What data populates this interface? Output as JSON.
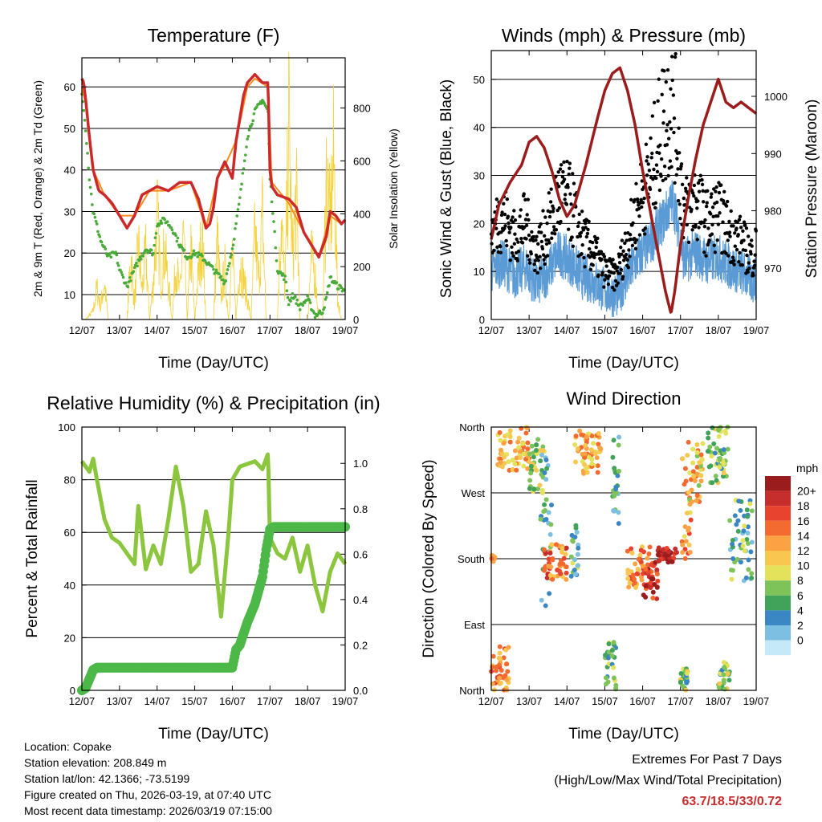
{
  "chart_data": [
    {
      "type": "line",
      "title": "Temperature (F)",
      "xlabel": "Time (Day/UTC)",
      "ylabel": "2m & 9m T (Red, Orange) & 2m Td (Green)",
      "y2label": "Solar Insolation (Yellow)",
      "categories": [
        "12/07",
        "13/07",
        "14/07",
        "15/07",
        "16/07",
        "17/07",
        "18/07",
        "19/07"
      ],
      "ylim": [
        4,
        67
      ],
      "yticks": [
        10,
        20,
        30,
        40,
        50,
        60
      ],
      "y2lim": [
        0,
        990
      ],
      "y2ticks": [
        0,
        200,
        400,
        600,
        800
      ],
      "series": [
        {
          "name": "2m T",
          "color": "#cc2a2a",
          "x": [
            0,
            0.05,
            0.1,
            0.2,
            0.3,
            0.45,
            0.6,
            0.8,
            1.0,
            1.2,
            1.4,
            1.6,
            1.8,
            2.0,
            2.3,
            2.6,
            2.9,
            3.1,
            3.3,
            3.4,
            3.5,
            3.6,
            3.8,
            4.0,
            4.1,
            4.3,
            4.4,
            4.6,
            4.8,
            4.95,
            5.0,
            5.05,
            5.2,
            5.5,
            5.7,
            5.9,
            6.1,
            6.3,
            6.5,
            6.6,
            6.75,
            6.9,
            7.0
          ],
          "values": [
            62,
            61,
            57,
            48,
            40,
            35,
            34,
            32,
            29,
            26,
            29,
            34,
            35,
            36,
            35,
            37,
            37,
            33,
            26,
            27,
            31,
            38,
            42,
            38,
            47,
            58,
            61,
            63,
            61,
            61,
            40,
            36,
            34,
            33,
            31,
            25,
            22,
            19,
            24,
            30,
            29,
            27,
            28
          ]
        },
        {
          "name": "9m T",
          "color": "#ff8c1a",
          "x": [
            0,
            0.1,
            0.3,
            0.6,
            1.0,
            1.4,
            1.8,
            2.3,
            2.9,
            3.3,
            3.6,
            3.8,
            4.1,
            4.4,
            4.6,
            4.95,
            5.05,
            5.5,
            5.9,
            6.3,
            6.6,
            6.9,
            7.0
          ],
          "values": [
            60,
            56,
            40,
            34,
            29,
            29,
            35,
            35,
            37,
            26,
            38,
            41,
            47,
            60,
            62,
            60,
            37,
            32,
            25,
            19,
            29,
            27,
            28
          ]
        },
        {
          "name": "2m Td",
          "color": "#4aaa3a",
          "x": [
            0,
            0.05,
            0.1,
            0.2,
            0.3,
            0.5,
            0.7,
            0.9,
            1.0,
            1.2,
            1.3,
            1.5,
            1.7,
            1.9,
            2.0,
            2.2,
            2.4,
            2.6,
            2.8,
            3.0,
            3.2,
            3.4,
            3.6,
            3.8,
            4.0,
            4.2,
            4.4,
            4.6,
            4.8,
            4.95,
            5.0,
            5.05,
            5.2,
            5.4,
            5.5,
            5.6,
            5.8,
            6.0,
            6.2,
            6.4,
            6.5,
            6.6,
            6.8,
            7.0
          ],
          "values": [
            58,
            55,
            50,
            38,
            30,
            23,
            19,
            20,
            16,
            12,
            14,
            18,
            21,
            20,
            27,
            28,
            26,
            22,
            19,
            20,
            19,
            17,
            15,
            13,
            21,
            33,
            48,
            54,
            57,
            54,
            38,
            33,
            16,
            14,
            8,
            10,
            7,
            9,
            5,
            6,
            9,
            14,
            12,
            11
          ]
        },
        {
          "name": "Solar Insolation",
          "axis": "y2",
          "color": "#f3d23c",
          "x": [
            0.1,
            0.3,
            0.4,
            0.5,
            0.6,
            0.7,
            1.2,
            1.3,
            1.4,
            1.5,
            1.6,
            1.7,
            1.8,
            1.9,
            2.0,
            2.1,
            2.2,
            2.4,
            2.5,
            2.6,
            2.7,
            2.8,
            2.9,
            3.0,
            3.1,
            3.2,
            3.3,
            3.5,
            3.6,
            3.7,
            3.8,
            3.9,
            4.0,
            4.1,
            4.2,
            4.5,
            4.6,
            4.7,
            4.8,
            4.9,
            5.0,
            5.2,
            5.3,
            5.4,
            5.5,
            5.6,
            5.7,
            5.8,
            5.9,
            6.0,
            6.1,
            6.2,
            6.3,
            6.4,
            6.5,
            6.6,
            6.7,
            6.8,
            6.9
          ],
          "values": [
            0,
            40,
            150,
            60,
            180,
            0,
            0,
            310,
            80,
            370,
            140,
            320,
            0,
            180,
            500,
            200,
            340,
            0,
            290,
            120,
            410,
            0,
            350,
            0,
            230,
            420,
            0,
            0,
            380,
            100,
            250,
            0,
            320,
            0,
            290,
            0,
            420,
            180,
            500,
            0,
            0,
            0,
            520,
            120,
            940,
            300,
            610,
            0,
            0,
            0,
            300,
            220,
            0,
            0,
            700,
            470,
            780,
            100,
            0
          ]
        }
      ]
    },
    {
      "type": "line",
      "title": "Winds (mph) & Pressure (mb)",
      "xlabel": "Time (Day/UTC)",
      "ylabel": "Sonic Wind & Gust (Blue, Black)",
      "y2label": "Station Pressure (Maroon)",
      "categories": [
        "12/07",
        "13/07",
        "14/07",
        "15/07",
        "16/07",
        "17/07",
        "18/07",
        "19/07"
      ],
      "ylim": [
        0,
        56
      ],
      "yticks": [
        0,
        10,
        20,
        30,
        40,
        50
      ],
      "y2lim": [
        961,
        1008
      ],
      "y2ticks": [
        970,
        980,
        990,
        1000
      ],
      "series": [
        {
          "name": "Sonic Wind",
          "color": "#5b9bd5",
          "x": [
            0,
            0.3,
            0.6,
            0.9,
            1.2,
            1.5,
            1.8,
            2.1,
            2.4,
            2.7,
            3.0,
            3.3,
            3.6,
            3.9,
            4.2,
            4.5,
            4.8,
            5.1,
            5.4,
            5.7,
            6.0,
            6.3,
            6.6,
            6.9,
            7.0
          ],
          "values": [
            10,
            12,
            9,
            11,
            7,
            10,
            14,
            12,
            9,
            8,
            6,
            5,
            9,
            13,
            16,
            20,
            25,
            12,
            14,
            12,
            13,
            11,
            10,
            8,
            9
          ]
        },
        {
          "name": "Gust",
          "color": "#000000",
          "x": [
            0,
            0.3,
            0.6,
            0.9,
            1.2,
            1.5,
            1.8,
            2.1,
            2.4,
            2.7,
            3.0,
            3.3,
            3.6,
            3.9,
            4.2,
            4.5,
            4.8,
            5.1,
            5.4,
            5.7,
            6.0,
            6.3,
            6.6,
            6.9,
            7.0
          ],
          "values": [
            18,
            22,
            17,
            20,
            14,
            19,
            26,
            24,
            17,
            14,
            10,
            9,
            16,
            24,
            30,
            40,
            47,
            22,
            25,
            20,
            22,
            18,
            16,
            13,
            15
          ]
        },
        {
          "name": "Station Pressure",
          "axis": "y2",
          "color": "#9b1c1c",
          "x": [
            0,
            0.2,
            0.5,
            0.8,
            1.0,
            1.2,
            1.4,
            1.6,
            1.8,
            2.0,
            2.2,
            2.5,
            2.8,
            3.0,
            3.2,
            3.4,
            3.6,
            3.8,
            4.0,
            4.2,
            4.4,
            4.6,
            4.75,
            4.85,
            5.0,
            5.2,
            5.4,
            5.6,
            5.8,
            6.0,
            6.2,
            6.4,
            6.6,
            6.8,
            7.0
          ],
          "values": [
            975,
            981,
            985,
            988,
            992,
            993,
            991,
            987,
            982,
            979,
            981,
            988,
            996,
            1001,
            1004,
            1005,
            1001,
            995,
            987,
            980,
            973,
            966,
            962,
            966,
            974,
            982,
            989,
            995,
            999,
            1003,
            999,
            998,
            999,
            998,
            997
          ]
        }
      ]
    },
    {
      "type": "line",
      "title": "Relative Humidity (%) & Precipitation (in)",
      "xlabel": "Time (Day/UTC)",
      "ylabel": "Percent & Total Rainfall",
      "categories": [
        "12/07",
        "13/07",
        "14/07",
        "15/07",
        "16/07",
        "17/07",
        "18/07",
        "19/07"
      ],
      "ylim": [
        0,
        100
      ],
      "yticks": [
        0,
        20,
        40,
        60,
        80,
        100
      ],
      "y2lim": [
        0,
        1.16
      ],
      "y2ticks": [
        0.0,
        0.2,
        0.4,
        0.6,
        0.8,
        1.0
      ],
      "series": [
        {
          "name": "Relative Humidity",
          "color": "#8cc63f",
          "x": [
            0,
            0.1,
            0.2,
            0.3,
            0.4,
            0.6,
            0.8,
            1.0,
            1.2,
            1.4,
            1.5,
            1.7,
            1.9,
            2.1,
            2.3,
            2.5,
            2.7,
            2.9,
            3.1,
            3.3,
            3.5,
            3.7,
            3.9,
            4.0,
            4.2,
            4.4,
            4.6,
            4.8,
            4.95,
            5.0,
            5.2,
            5.4,
            5.6,
            5.8,
            6.0,
            6.2,
            6.4,
            6.6,
            6.8,
            7.0
          ],
          "values": [
            87,
            85,
            83,
            88,
            80,
            65,
            58,
            56,
            52,
            48,
            70,
            46,
            55,
            48,
            65,
            85,
            70,
            45,
            48,
            68,
            55,
            28,
            60,
            80,
            85,
            86,
            87,
            84,
            90,
            58,
            52,
            50,
            58,
            45,
            55,
            40,
            30,
            45,
            52,
            48
          ]
        },
        {
          "name": "Total Precipitation",
          "axis": "y2",
          "color": "#4cb848",
          "x": [
            0,
            0.1,
            0.2,
            0.3,
            0.4,
            1.0,
            2.0,
            3.0,
            4.0,
            4.1,
            4.2,
            4.4,
            4.6,
            4.8,
            4.9,
            5.0,
            5.1,
            6.0,
            7.0
          ],
          "values": [
            0.0,
            0.01,
            0.05,
            0.09,
            0.1,
            0.1,
            0.1,
            0.1,
            0.1,
            0.18,
            0.2,
            0.3,
            0.38,
            0.5,
            0.62,
            0.71,
            0.72,
            0.72,
            0.72
          ]
        }
      ]
    },
    {
      "type": "scatter",
      "title": "Wind Direction",
      "xlabel": "Time (Day/UTC)",
      "ylabel": "Direction (Colored By Speed)",
      "categories": [
        "12/07",
        "13/07",
        "14/07",
        "15/07",
        "16/07",
        "17/07",
        "18/07",
        "19/07"
      ],
      "ylim": [
        0,
        360
      ],
      "ytick_labels": [
        "North",
        "East",
        "South",
        "West",
        "North"
      ],
      "ytick_values": [
        0,
        90,
        180,
        270,
        360
      ],
      "legend": {
        "title": "mph",
        "labels": [
          "20+",
          "18",
          "16",
          "14",
          "12",
          "10",
          "8",
          "6",
          "4",
          "2",
          "0"
        ],
        "colors": [
          "#9b1c1c",
          "#c62d2d",
          "#e8432d",
          "#f36b2e",
          "#fba344",
          "#f9c74f",
          "#e4e25a",
          "#7dc35a",
          "#41a35a",
          "#3b87c3",
          "#7cbfe3",
          "#c6e9f9"
        ],
        "position": "right"
      },
      "clusters": [
        {
          "x0": 0.0,
          "x1": 0.1,
          "d0": 175,
          "d1": 185,
          "speed": 12
        },
        {
          "x0": 0.15,
          "x1": 1.0,
          "d0": 300,
          "d1": 360,
          "speed": 11
        },
        {
          "x0": 1.0,
          "x1": 1.4,
          "d0": 270,
          "d1": 345,
          "speed": 7
        },
        {
          "x0": 1.3,
          "x1": 1.6,
          "d0": 110,
          "d1": 330,
          "speed": 3
        },
        {
          "x0": 1.4,
          "x1": 2.0,
          "d0": 150,
          "d1": 200,
          "speed": 14
        },
        {
          "x0": 2.2,
          "x1": 2.9,
          "d0": 295,
          "d1": 355,
          "speed": 11
        },
        {
          "x0": 2.1,
          "x1": 2.3,
          "d0": 150,
          "d1": 230,
          "speed": 4
        },
        {
          "x0": 3.2,
          "x1": 3.4,
          "d0": 220,
          "d1": 360,
          "speed": 3
        },
        {
          "x0": 3.0,
          "x1": 3.3,
          "d0": 0,
          "d1": 70,
          "speed": 5
        },
        {
          "x0": 3.6,
          "x1": 4.2,
          "d0": 140,
          "d1": 200,
          "speed": 13
        },
        {
          "x0": 4.0,
          "x1": 4.4,
          "d0": 125,
          "d1": 175,
          "speed": 17
        },
        {
          "x0": 4.4,
          "x1": 4.9,
          "d0": 175,
          "d1": 195,
          "speed": 20
        },
        {
          "x0": 5.0,
          "x1": 5.3,
          "d0": 180,
          "d1": 330,
          "speed": 12
        },
        {
          "x0": 5.2,
          "x1": 5.6,
          "d0": 250,
          "d1": 340,
          "speed": 10
        },
        {
          "x0": 5.7,
          "x1": 6.3,
          "d0": 280,
          "d1": 360,
          "speed": 6
        },
        {
          "x0": 6.3,
          "x1": 6.9,
          "d0": 150,
          "d1": 260,
          "speed": 4
        },
        {
          "x0": 5.0,
          "x1": 5.2,
          "d0": 0,
          "d1": 30,
          "speed": 6
        },
        {
          "x0": 6.0,
          "x1": 6.3,
          "d0": 0,
          "d1": 40,
          "speed": 6
        },
        {
          "x0": 0.0,
          "x1": 0.5,
          "d0": 0,
          "d1": 60,
          "speed": 13
        }
      ]
    }
  ],
  "station": {
    "location": "Location: Copake",
    "elevation": "Station elevation: 208.849 m",
    "latlon": "Station lat/lon: 42.1366; -73.5199",
    "created": "Figure created on Thu, 2026-03-19, at 07:40 UTC",
    "recent": "Most recent data timestamp: 2026/03/19 07:15:00"
  },
  "extremes": {
    "line1": "Extremes For Past 7 Days",
    "line2": "(High/Low/Max Wind/Total Precipitation)",
    "values": "63.7/18.5/33/0.72"
  }
}
